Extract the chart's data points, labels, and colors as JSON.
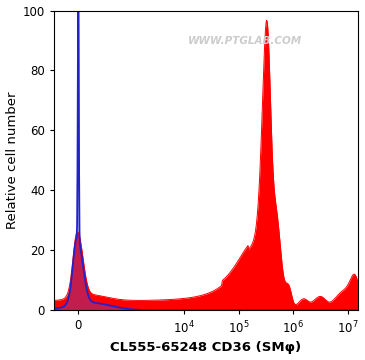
{
  "xlabel": "CL555-65248 CD36 (SMφ)",
  "ylabel": "Relative cell number",
  "watermark": "WWW.PTGLAB.COM",
  "ylim": [
    0,
    100
  ],
  "background_color": "#ffffff",
  "blue_line_color": "#2222cc",
  "blue_fill_color": "#5555dd",
  "red_color": "#ff0000",
  "linthresh": 1500,
  "xlim_lo": -600,
  "xlim_hi": 15000000,
  "xticks": [
    0,
    10000,
    100000,
    1000000,
    10000000
  ],
  "xticklabels": [
    "0",
    "10$^4$",
    "10$^5$",
    "10$^6$",
    "10$^7$"
  ],
  "yticks": [
    0,
    20,
    40,
    60,
    80,
    100
  ]
}
